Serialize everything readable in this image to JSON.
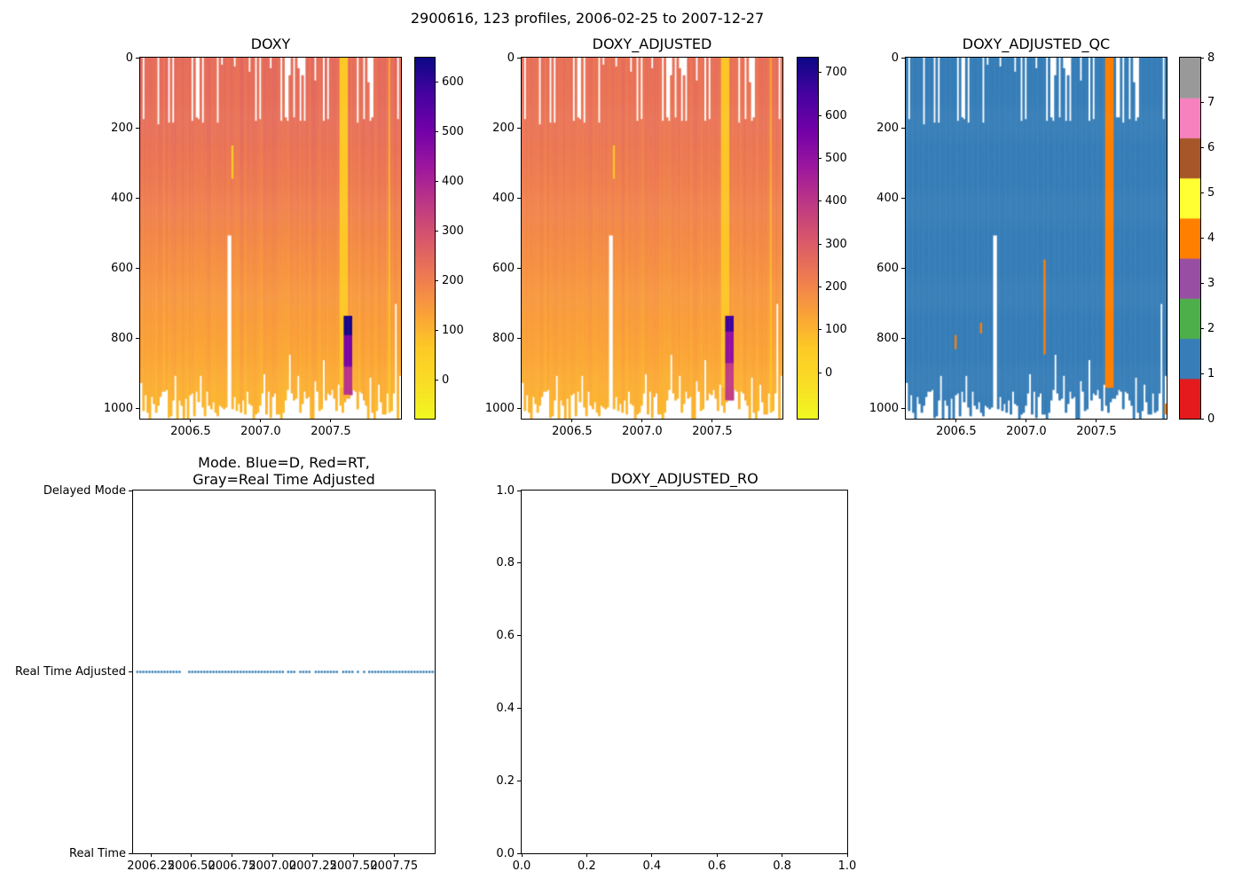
{
  "suptitle": "2900616, 123 profiles, 2006-02-25 to 2007-12-27",
  "colors": {
    "plasma_stops": [
      [
        0.0,
        "#0d0887"
      ],
      [
        0.1,
        "#46039f"
      ],
      [
        0.2,
        "#7201a8"
      ],
      [
        0.3,
        "#9c179e"
      ],
      [
        0.4,
        "#bd3786"
      ],
      [
        0.5,
        "#d8576b"
      ],
      [
        0.6,
        "#ed7953"
      ],
      [
        0.7,
        "#fa9e3b"
      ],
      [
        0.8,
        "#fdc926"
      ],
      [
        0.9,
        "#f9dd25"
      ],
      [
        1.0,
        "#f0f921"
      ]
    ],
    "qc_flag_colors": [
      "#e41a1c",
      "#377eb8",
      "#4daf4a",
      "#984ea3",
      "#ff7f00",
      "#ffff33",
      "#a65628",
      "#f781bf",
      "#999999"
    ],
    "mode_point_color": "#2878b4",
    "axis_color": "#000000"
  },
  "chart_data": [
    {
      "id": "doxy",
      "type": "heatmap",
      "title": "DOXY",
      "n_profiles": 123,
      "x_range": [
        2006.14,
        2008.0
      ],
      "x_ticks": [
        "2006.5",
        "2007.0",
        "2007.5"
      ],
      "y_range": [
        0,
        1028
      ],
      "y_ticks": [
        "0",
        "200",
        "400",
        "600",
        "800",
        "1000"
      ],
      "colorbar": {
        "colormap": "plasma_r",
        "range": [
          -77,
          650
        ],
        "ticks": [
          "0",
          "100",
          "200",
          "300",
          "400",
          "500",
          "600"
        ]
      },
      "value_by_depth": [
        [
          0,
          240
        ],
        [
          200,
          232
        ],
        [
          400,
          205
        ],
        [
          550,
          175
        ],
        [
          700,
          150
        ],
        [
          850,
          128
        ],
        [
          1028,
          96
        ]
      ],
      "features": [
        {
          "kind": "stripe",
          "x": [
            2007.555,
            2007.625
          ],
          "depth": [
            0,
            940
          ],
          "value": 70
        },
        {
          "kind": "blob",
          "x": [
            2007.585,
            2007.645
          ],
          "segments": [
            {
              "depth": [
                735,
                790
              ],
              "value": 635
            },
            {
              "depth": [
                790,
                880
              ],
              "value": 490
            },
            {
              "depth": [
                880,
                960
              ],
              "value": 373
            }
          ]
        },
        {
          "kind": "line",
          "x": [
            2006.785,
            2006.8
          ],
          "depth": [
            250,
            345
          ],
          "value": 70
        },
        {
          "kind": "light_column",
          "x": [
            2007.905,
            2007.925
          ],
          "depth": [
            0,
            1028
          ],
          "value_scale": 0.55
        }
      ],
      "missing_columns": [
        {
          "x": 2006.775,
          "depth": [
            505,
            1030
          ]
        },
        {
          "x": 2007.205,
          "depth": [
            845,
            1030
          ]
        },
        {
          "x": 2007.45,
          "depth": [
            860,
            1030
          ]
        },
        {
          "x": 2007.965,
          "depth": [
            700,
            1030
          ]
        }
      ]
    },
    {
      "id": "doxy_adjusted",
      "type": "heatmap",
      "title": "DOXY_ADJUSTED",
      "n_profiles": 123,
      "x_range": [
        2006.14,
        2008.0
      ],
      "x_ticks": [
        "2006.5",
        "2007.0",
        "2007.5"
      ],
      "y_range": [
        0,
        1028
      ],
      "y_ticks": [
        "0",
        "200",
        "400",
        "600",
        "800",
        "1000"
      ],
      "colorbar": {
        "colormap": "plasma_r",
        "range": [
          -107,
          735
        ],
        "ticks": [
          "0",
          "100",
          "200",
          "300",
          "400",
          "500",
          "600",
          "700"
        ]
      },
      "value_by_depth": [
        [
          0,
          250
        ],
        [
          200,
          240
        ],
        [
          400,
          210
        ],
        [
          550,
          182
        ],
        [
          700,
          155
        ],
        [
          850,
          130
        ],
        [
          1028,
          97
        ]
      ],
      "features": [
        {
          "kind": "stripe",
          "x": [
            2007.555,
            2007.625
          ],
          "depth": [
            0,
            940
          ],
          "value": 70
        },
        {
          "kind": "blob",
          "x": [
            2007.585,
            2007.645
          ],
          "segments": [
            {
              "depth": [
                735,
                780
              ],
              "value": 660
            },
            {
              "depth": [
                780,
                870
              ],
              "value": 500
            },
            {
              "depth": [
                870,
                975
              ],
              "value": 385
            }
          ]
        },
        {
          "kind": "line",
          "x": [
            2006.785,
            2006.8
          ],
          "depth": [
            250,
            345
          ],
          "value": 70
        },
        {
          "kind": "light_column",
          "x": [
            2007.905,
            2007.925
          ],
          "depth": [
            0,
            1028
          ],
          "value_scale": 0.55
        }
      ],
      "missing_columns": [
        {
          "x": 2006.775,
          "depth": [
            505,
            1030
          ]
        },
        {
          "x": 2007.205,
          "depth": [
            845,
            1030
          ]
        },
        {
          "x": 2007.45,
          "depth": [
            860,
            1030
          ]
        },
        {
          "x": 2007.965,
          "depth": [
            700,
            1030
          ]
        }
      ]
    },
    {
      "id": "doxy_adjusted_qc",
      "type": "heatmap-categorical",
      "title": "DOXY_ADJUSTED_QC",
      "n_profiles": 123,
      "x_range": [
        2006.14,
        2008.0
      ],
      "x_ticks": [
        "2006.5",
        "2007.0",
        "2007.5"
      ],
      "y_range": [
        0,
        1028
      ],
      "y_ticks": [
        "0",
        "200",
        "400",
        "600",
        "800",
        "1000"
      ],
      "background_value": 1,
      "colorbar": {
        "ticks": [
          "0",
          "1",
          "2",
          "3",
          "4",
          "5",
          "6",
          "7",
          "8"
        ],
        "colors": [
          "#e41a1c",
          "#377eb8",
          "#4daf4a",
          "#984ea3",
          "#ff7f00",
          "#ffff33",
          "#a65628",
          "#f781bf",
          "#999999"
        ]
      },
      "features": [
        {
          "kind": "stripe",
          "x": [
            2007.555,
            2007.625
          ],
          "depth": [
            0,
            940
          ],
          "value": 4
        },
        {
          "kind": "mark",
          "x": [
            2007.645,
            2007.658
          ],
          "depth": [
            55,
            145
          ],
          "value": 4
        },
        {
          "kind": "line",
          "x": [
            2007.125,
            2007.138
          ],
          "depth": [
            575,
            845
          ],
          "value": 4
        },
        {
          "kind": "mark",
          "x": [
            2006.49,
            2006.503
          ],
          "depth": [
            790,
            830
          ],
          "value": 4
        },
        {
          "kind": "mark",
          "x": [
            2006.672,
            2006.685
          ],
          "depth": [
            755,
            785
          ],
          "value": 4
        },
        {
          "kind": "mark",
          "x": [
            2007.985,
            2008.0
          ],
          "depth": [
            985,
            1012
          ],
          "value": 4
        }
      ],
      "missing_columns": [
        {
          "x": 2006.775,
          "depth": [
            505,
            1030
          ]
        },
        {
          "x": 2007.205,
          "depth": [
            845,
            1030
          ]
        },
        {
          "x": 2007.45,
          "depth": [
            860,
            1030
          ]
        },
        {
          "x": 2007.965,
          "depth": [
            700,
            1030
          ]
        },
        {
          "x": 2007.651,
          "depth": [
            0,
            170
          ]
        }
      ]
    },
    {
      "id": "mode",
      "type": "scatter",
      "title_lines": [
        "Mode. Blue=D, Red=RT,",
        "Gray=Real Time Adjusted"
      ],
      "x_range": [
        2006.14,
        2008.0
      ],
      "x_ticks": [
        "2006.25",
        "2006.50",
        "2006.75",
        "2007.00",
        "2007.25",
        "2007.50",
        "2007.75"
      ],
      "y_range": [
        0,
        2
      ],
      "y_categories": [
        {
          "label": "Delayed Mode",
          "value": 2
        },
        {
          "label": "Real Time Adjusted",
          "value": 1
        },
        {
          "label": "Real Time",
          "value": 0
        }
      ],
      "series_value": 1,
      "segments": [
        {
          "x": [
            2006.16,
            2006.43
          ]
        },
        {
          "x": [
            2006.48,
            2007.06
          ]
        },
        {
          "x": [
            2007.09,
            2007.14
          ]
        },
        {
          "x": [
            2007.165,
            2007.235
          ]
        },
        {
          "x": [
            2007.26,
            2007.4
          ]
        },
        {
          "x": [
            2007.43,
            2007.495
          ]
        },
        {
          "x": [
            2007.52,
            2007.575
          ],
          "sparse": true
        },
        {
          "x": [
            2007.59,
            2008.0
          ]
        }
      ]
    },
    {
      "id": "doxy_adjusted_ro",
      "type": "empty",
      "title": "DOXY_ADJUSTED_RO",
      "x_range": [
        0,
        1
      ],
      "y_range": [
        0,
        1
      ],
      "x_ticks": [
        "0.0",
        "0.2",
        "0.4",
        "0.6",
        "0.8",
        "1.0"
      ],
      "y_ticks": [
        "0.0",
        "0.2",
        "0.4",
        "0.6",
        "0.8",
        "1.0"
      ]
    }
  ]
}
